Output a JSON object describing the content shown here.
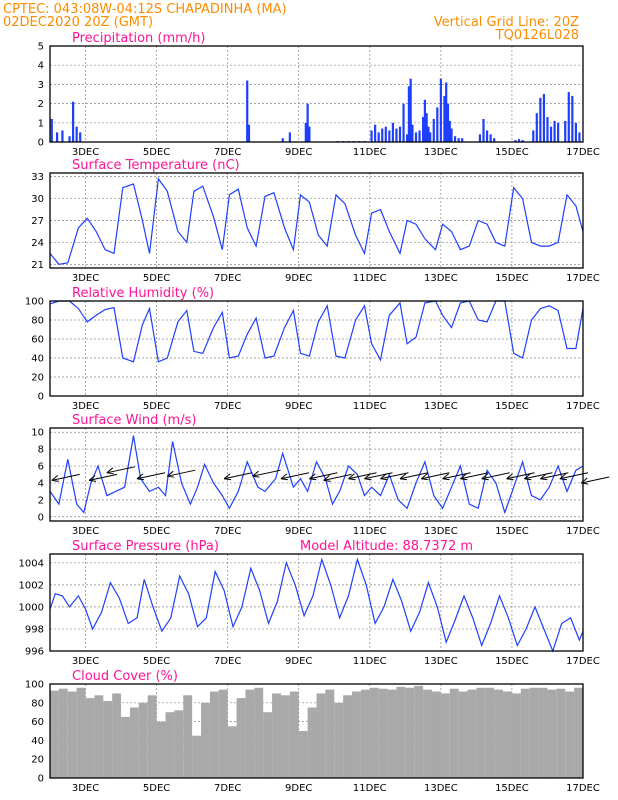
{
  "header": {
    "line1_left": "CPTEC:   043:08W-04:12S   CHAPADINHA (MA)",
    "line1_right": "Vertical Grid Line: 20Z",
    "line2_left": "02DEC2020 20Z (GMT)",
    "line2_right": "TQ0126L028"
  },
  "colors": {
    "header": "#ff8c00",
    "title": "#ff1493",
    "series": "#1f3fff",
    "cloud": "#a9a9a9"
  },
  "x_axis": {
    "start_day": 2,
    "end_day": 17,
    "tick_labels": [
      "3DEC",
      "5DEC",
      "7DEC",
      "9DEC",
      "11DEC",
      "13DEC",
      "15DEC",
      "17DEC"
    ]
  },
  "chart_data": [
    {
      "type": "bar",
      "title": "Precipitation (mm/h)",
      "ylim": [
        0,
        5
      ],
      "yticks": [
        0,
        1,
        2,
        3,
        4,
        5
      ],
      "x": [
        2.05,
        2.2,
        2.35,
        2.55,
        2.65,
        2.75,
        2.85,
        7.55,
        7.6,
        8.55,
        8.75,
        9.2,
        9.25,
        9.3,
        10.1,
        10.25,
        10.4,
        10.55,
        10.7,
        10.85,
        11.05,
        11.15,
        11.25,
        11.35,
        11.45,
        11.55,
        11.65,
        11.75,
        11.85,
        11.95,
        12.05,
        12.1,
        12.15,
        12.2,
        12.3,
        12.4,
        12.5,
        12.55,
        12.6,
        12.65,
        12.7,
        12.8,
        12.9,
        13.0,
        13.1,
        13.15,
        13.2,
        13.25,
        13.3,
        13.4,
        13.5,
        13.6,
        14.1,
        14.2,
        14.3,
        14.4,
        14.5,
        15.1,
        15.2,
        15.3,
        15.6,
        15.7,
        15.8,
        15.9,
        16.0,
        16.1,
        16.2,
        16.3,
        16.5,
        16.6,
        16.7,
        16.8,
        16.9
      ],
      "values": [
        1.2,
        0.5,
        0.6,
        0.3,
        2.1,
        0.8,
        0.5,
        3.2,
        0.9,
        0.2,
        0.5,
        1.0,
        2.0,
        0.8,
        0.05,
        0.05,
        0.05,
        0.05,
        0.05,
        0.05,
        0.6,
        0.9,
        0.5,
        0.7,
        0.8,
        0.6,
        1.0,
        0.7,
        0.8,
        2.0,
        0.4,
        2.9,
        3.3,
        0.9,
        0.5,
        0.6,
        1.3,
        2.2,
        1.5,
        0.8,
        0.5,
        1.2,
        1.8,
        3.3,
        2.4,
        3.1,
        2.0,
        1.1,
        0.7,
        0.3,
        0.2,
        0.2,
        0.4,
        1.2,
        0.6,
        0.4,
        0.2,
        0.1,
        0.15,
        0.1,
        0.6,
        1.5,
        2.3,
        2.5,
        1.3,
        0.8,
        1.1,
        1.0,
        1.1,
        2.6,
        2.4,
        1.0,
        0.5
      ]
    },
    {
      "type": "line",
      "title": "Surface Temperature (nC)",
      "ylim": [
        20.5,
        33.5
      ],
      "yticks": [
        21,
        24,
        27,
        30,
        33
      ],
      "x": [
        2.0,
        2.25,
        2.5,
        2.8,
        3.05,
        3.3,
        3.55,
        3.8,
        4.05,
        4.35,
        4.6,
        4.8,
        5.05,
        5.3,
        5.6,
        5.85,
        6.05,
        6.3,
        6.6,
        6.85,
        7.05,
        7.3,
        7.55,
        7.8,
        8.05,
        8.3,
        8.6,
        8.85,
        9.05,
        9.3,
        9.55,
        9.8,
        10.05,
        10.3,
        10.6,
        10.85,
        11.05,
        11.3,
        11.55,
        11.85,
        12.05,
        12.3,
        12.55,
        12.85,
        13.05,
        13.3,
        13.55,
        13.8,
        14.05,
        14.3,
        14.55,
        14.8,
        15.05,
        15.3,
        15.55,
        15.8,
        16.05,
        16.3,
        16.55,
        16.8,
        17.0
      ],
      "values": [
        22.5,
        21.0,
        21.2,
        26.0,
        27.3,
        25.5,
        23.0,
        22.5,
        31.5,
        32.0,
        27.0,
        22.5,
        32.7,
        31.0,
        25.5,
        24.0,
        31.0,
        31.7,
        27.5,
        23.0,
        30.5,
        31.3,
        26.0,
        23.5,
        30.3,
        30.8,
        26.0,
        23.0,
        30.5,
        29.5,
        25.0,
        23.5,
        30.5,
        29.3,
        25.0,
        22.5,
        28.0,
        28.5,
        25.5,
        22.5,
        27.0,
        26.5,
        24.5,
        23.0,
        26.5,
        25.5,
        23.0,
        23.5,
        27.0,
        26.5,
        24.0,
        23.5,
        31.5,
        30.0,
        24.0,
        23.5,
        23.5,
        24.0,
        30.5,
        29.0,
        25.5
      ]
    },
    {
      "type": "line",
      "title": "Relative Humidity (%)",
      "ylim": [
        0,
        100
      ],
      "yticks": [
        0,
        20,
        40,
        60,
        80,
        100
      ],
      "x": [
        2.0,
        2.25,
        2.55,
        2.8,
        3.05,
        3.3,
        3.55,
        3.8,
        4.05,
        4.35,
        4.6,
        4.8,
        5.05,
        5.3,
        5.6,
        5.85,
        6.05,
        6.3,
        6.6,
        6.85,
        7.05,
        7.3,
        7.55,
        7.8,
        8.05,
        8.3,
        8.6,
        8.85,
        9.05,
        9.3,
        9.55,
        9.8,
        10.05,
        10.3,
        10.6,
        10.85,
        11.05,
        11.3,
        11.55,
        11.85,
        12.05,
        12.3,
        12.55,
        12.85,
        13.05,
        13.3,
        13.55,
        13.8,
        14.05,
        14.3,
        14.55,
        14.8,
        15.05,
        15.3,
        15.55,
        15.8,
        16.05,
        16.3,
        16.55,
        16.8,
        17.0
      ],
      "values": [
        97,
        100,
        100,
        92,
        78,
        85,
        91,
        93,
        40,
        36,
        75,
        92,
        36,
        40,
        78,
        90,
        47,
        45,
        72,
        88,
        40,
        42,
        65,
        82,
        40,
        42,
        72,
        90,
        45,
        42,
        78,
        95,
        42,
        40,
        80,
        95,
        55,
        38,
        85,
        98,
        55,
        62,
        98,
        100,
        85,
        72,
        98,
        100,
        80,
        78,
        100,
        100,
        45,
        40,
        80,
        92,
        95,
        90,
        50,
        50,
        92
      ]
    },
    {
      "type": "line",
      "title": "Surface Wind (m/s)",
      "ylim": [
        -0.5,
        10.5
      ],
      "yticks": [
        0,
        2,
        4,
        6,
        8,
        10
      ],
      "x": [
        2.0,
        2.25,
        2.5,
        2.75,
        2.95,
        3.15,
        3.35,
        3.6,
        3.85,
        4.1,
        4.35,
        4.55,
        4.8,
        5.05,
        5.25,
        5.45,
        5.7,
        5.95,
        6.15,
        6.35,
        6.6,
        6.85,
        7.05,
        7.3,
        7.55,
        7.85,
        8.05,
        8.35,
        8.55,
        8.85,
        9.05,
        9.25,
        9.5,
        9.75,
        9.95,
        10.15,
        10.4,
        10.65,
        10.85,
        11.05,
        11.3,
        11.55,
        11.8,
        12.05,
        12.3,
        12.55,
        12.8,
        13.05,
        13.3,
        13.55,
        13.8,
        14.05,
        14.3,
        14.55,
        14.8,
        15.05,
        15.3,
        15.55,
        15.8,
        16.05,
        16.3,
        16.55,
        16.8,
        17.0
      ],
      "values": [
        3.0,
        1.5,
        6.8,
        1.5,
        0.5,
        4.0,
        6.0,
        2.5,
        3.0,
        3.5,
        9.6,
        4.5,
        3.0,
        3.5,
        2.5,
        8.9,
        4.0,
        1.5,
        3.5,
        6.2,
        4.0,
        2.5,
        1.0,
        3.0,
        6.5,
        3.5,
        3.0,
        4.5,
        7.5,
        3.5,
        4.5,
        3.0,
        6.5,
        4.5,
        1.5,
        3.0,
        6.0,
        5.0,
        2.5,
        3.5,
        2.5,
        5.0,
        2.0,
        1.0,
        4.0,
        6.5,
        2.5,
        1.0,
        3.5,
        6.0,
        1.5,
        1.0,
        5.5,
        4.0,
        0.5,
        3.5,
        6.5,
        2.5,
        2.0,
        3.5,
        6.0,
        3.0,
        5.5,
        6.0
      ],
      "arrows_x": [
        2.05,
        3.1,
        3.6,
        4.45,
        5.3,
        6.9,
        7.7,
        8.5,
        9.3,
        9.7,
        10.4,
        10.85,
        11.3,
        11.85,
        12.45,
        13.05,
        13.55,
        14.15,
        14.85,
        15.35,
        15.8,
        16.35,
        16.95
      ],
      "arrows_y": [
        4.3,
        4.3,
        5.2,
        4.5,
        4.8,
        4.5,
        4.8,
        4.5,
        4.5,
        4.3,
        4.5,
        4.5,
        4.5,
        4.5,
        4.5,
        4.5,
        4.5,
        4.5,
        4.5,
        4.5,
        4.5,
        4.5,
        4.0
      ]
    },
    {
      "type": "line",
      "title": "Surface Pressure (hPa)",
      "annotation": "Model Altitude: 88.7372 m",
      "ylim": [
        996,
        1004.8
      ],
      "yticks": [
        996,
        998,
        1000,
        1002,
        1004
      ],
      "x": [
        2.0,
        2.15,
        2.35,
        2.55,
        2.8,
        3.0,
        3.2,
        3.45,
        3.7,
        3.95,
        4.2,
        4.45,
        4.65,
        4.9,
        5.15,
        5.4,
        5.65,
        5.9,
        6.15,
        6.4,
        6.65,
        6.9,
        7.15,
        7.4,
        7.65,
        7.9,
        8.15,
        8.4,
        8.65,
        8.9,
        9.15,
        9.4,
        9.65,
        9.9,
        10.15,
        10.4,
        10.65,
        10.9,
        11.15,
        11.4,
        11.65,
        11.9,
        12.15,
        12.4,
        12.65,
        12.9,
        13.15,
        13.4,
        13.65,
        13.9,
        14.15,
        14.4,
        14.65,
        14.9,
        15.15,
        15.4,
        15.65,
        15.9,
        16.15,
        16.4,
        16.65,
        16.9,
        17.0
      ],
      "values": [
        999.8,
        1001.2,
        1001.0,
        1000.0,
        1001.0,
        999.8,
        998.0,
        999.5,
        1002.2,
        1000.8,
        998.5,
        999.0,
        1002.5,
        1000.0,
        997.8,
        999.0,
        1002.8,
        1001.2,
        998.2,
        999.0,
        1003.2,
        1001.5,
        998.2,
        1000.0,
        1003.5,
        1001.5,
        998.5,
        1000.5,
        1004.0,
        1002.0,
        999.2,
        1001.0,
        1004.3,
        1002.0,
        999.0,
        1001.0,
        1004.3,
        1002.0,
        998.5,
        1000.0,
        1002.5,
        1000.5,
        997.8,
        999.5,
        1002.2,
        1000.0,
        996.8,
        998.8,
        1001.0,
        999.0,
        996.5,
        998.5,
        1001.0,
        999.0,
        996.5,
        998.0,
        1000.0,
        998.0,
        996.0,
        998.5,
        999.0,
        997.0,
        997.8
      ]
    },
    {
      "type": "bar",
      "title": "Cloud Cover (%)",
      "ylim": [
        0,
        100
      ],
      "yticks": [
        0,
        20,
        40,
        60,
        80,
        100
      ],
      "x": [
        2.0,
        2.25,
        2.5,
        2.75,
        3.0,
        3.25,
        3.5,
        3.75,
        4.0,
        4.25,
        4.5,
        4.75,
        5.0,
        5.25,
        5.5,
        5.75,
        6.0,
        6.25,
        6.5,
        6.75,
        7.0,
        7.25,
        7.5,
        7.75,
        8.0,
        8.25,
        8.5,
        8.75,
        9.0,
        9.25,
        9.5,
        9.75,
        10.0,
        10.25,
        10.5,
        10.75,
        11.0,
        11.25,
        11.5,
        11.75,
        12.0,
        12.25,
        12.5,
        12.75,
        13.0,
        13.25,
        13.5,
        13.75,
        14.0,
        14.25,
        14.5,
        14.75,
        15.0,
        15.25,
        15.5,
        15.75,
        16.0,
        16.25,
        16.5,
        16.75
      ],
      "values": [
        93,
        95,
        92,
        96,
        85,
        88,
        82,
        90,
        65,
        75,
        80,
        88,
        60,
        70,
        72,
        88,
        45,
        80,
        92,
        94,
        55,
        85,
        94,
        96,
        70,
        90,
        88,
        92,
        50,
        75,
        90,
        94,
        80,
        88,
        92,
        94,
        96,
        95,
        94,
        97,
        96,
        98,
        94,
        92,
        90,
        95,
        92,
        94,
        96,
        96,
        94,
        92,
        90,
        95,
        96,
        96,
        94,
        95,
        92,
        96
      ]
    }
  ]
}
